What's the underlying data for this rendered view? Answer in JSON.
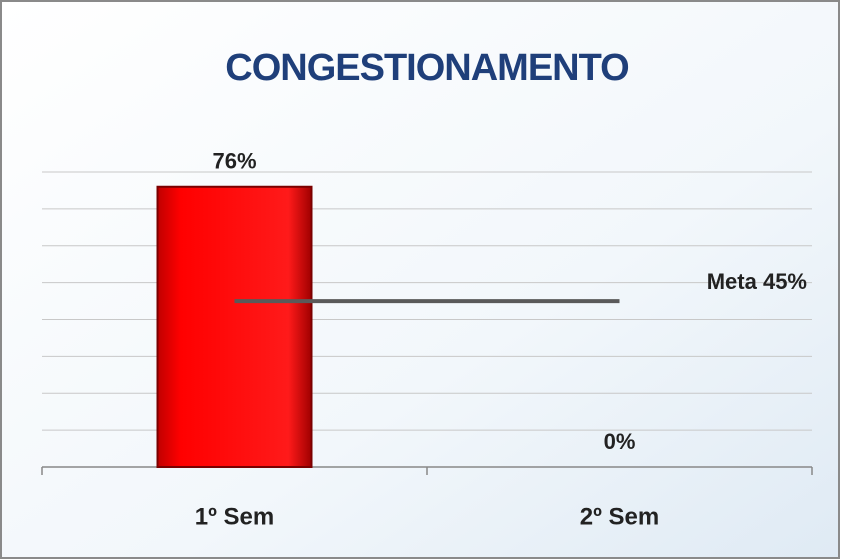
{
  "chart_data": {
    "type": "bar",
    "title": "CONGESTIONAMENTO",
    "categories": [
      "1º Sem",
      "2º Sem"
    ],
    "values": [
      76,
      0
    ],
    "value_labels": [
      "76%",
      "0%"
    ],
    "color": "#ff0000",
    "ylim": [
      0,
      80
    ],
    "yticks": [
      0,
      10,
      20,
      30,
      40,
      50,
      60,
      70,
      80
    ],
    "grid": true,
    "target": {
      "value": 45,
      "label": "Meta 45%",
      "color": "#5a5a5a"
    }
  }
}
